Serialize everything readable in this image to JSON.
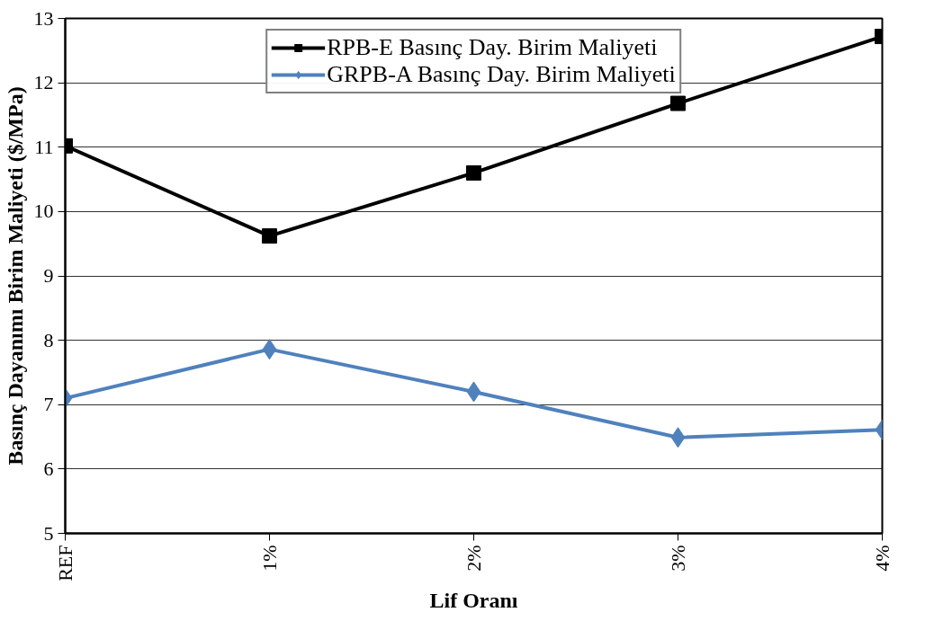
{
  "chart_data": {
    "type": "line",
    "xlabel": "Lif Oranı",
    "ylabel": "Basınç Dayanımı Birim Maliyeti ($/MPa)",
    "categories": [
      "REF",
      "1%",
      "2%",
      "3%",
      "4%"
    ],
    "series": [
      {
        "name": "RPB-E Basınç Day. Birim Maliyeti",
        "color": "#000000",
        "marker": "square",
        "values": [
          11.02,
          9.62,
          10.6,
          11.68,
          12.72
        ]
      },
      {
        "name": "GRPB-A Basınç Day. Birim Maliyeti",
        "color": "#4f81bd",
        "marker": "diamond",
        "values": [
          7.1,
          7.86,
          7.2,
          6.49,
          6.61
        ]
      }
    ],
    "ylim": [
      5,
      13
    ],
    "yticks": [
      5,
      6,
      7,
      8,
      9,
      10,
      11,
      12,
      13
    ],
    "grid": "y",
    "legend": "top"
  }
}
